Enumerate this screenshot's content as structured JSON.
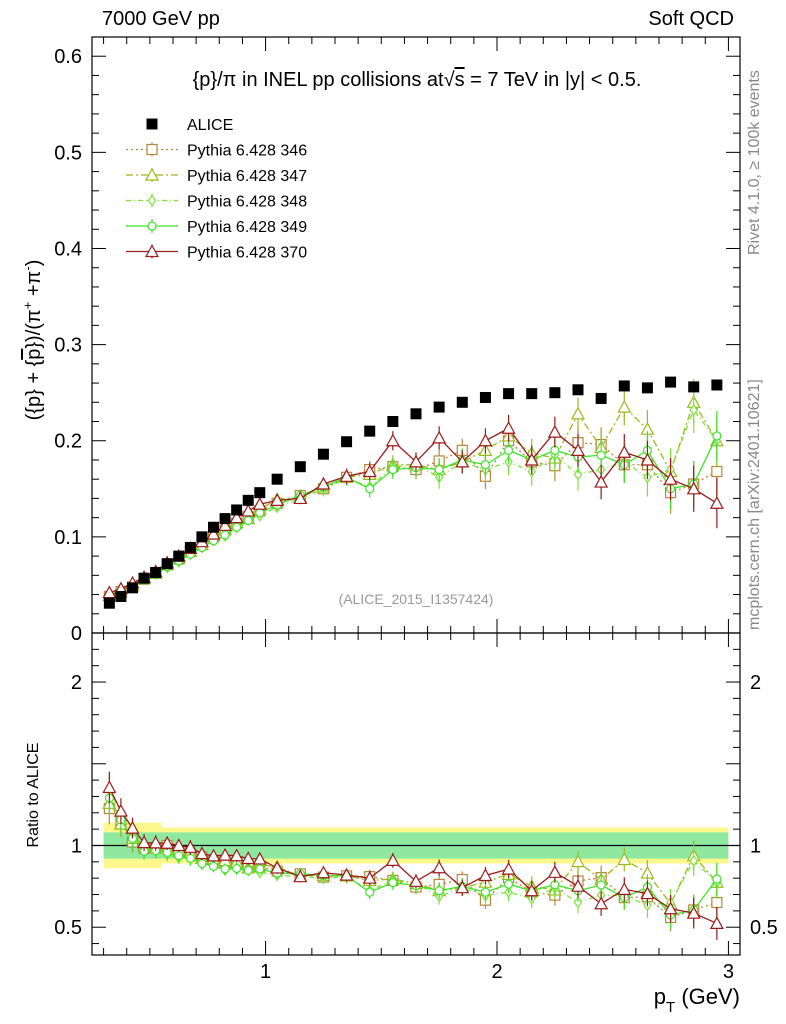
{
  "header": {
    "left": "7000 GeV pp",
    "right": "Soft QCD"
  },
  "side_labels": {
    "rivet": "Rivet 4.1.0, ≥ 100k events",
    "mcplots": "mcplots.cern.ch [arXiv:2401.10621]"
  },
  "chart_data": {
    "type": "scatter",
    "title_parts": [
      "{p}/π in INEL pp collisions at",
      "s",
      " =  7 TeV in |y| < 0.5."
    ],
    "ylabel_parts": [
      "({p} + {",
      "p",
      "})/(π",
      "+",
      " +π",
      "-",
      ")"
    ],
    "xlabel_parts": [
      "p",
      "T",
      " (GeV)"
    ],
    "ratio_ylabel": "Ratio to ALICE",
    "watermark": "(ALICE_2015_I1357424)",
    "main_ylim": [
      0,
      0.62
    ],
    "main_yticks": [
      0,
      0.1,
      0.2,
      0.3,
      0.4,
      0.5,
      0.6
    ],
    "main_ytick_labels": [
      "0",
      "0.1",
      "0.2",
      "0.3",
      "0.4",
      "0.5",
      "0.6"
    ],
    "xlim": [
      0.25,
      3.05
    ],
    "xticks": [
      1,
      2,
      3
    ],
    "xtick_labels": [
      "1",
      "2",
      "3"
    ],
    "ratio_ylim": [
      0.33,
      2.3
    ],
    "ratio_yticks": [
      0.5,
      1,
      2
    ],
    "ratio_ytick_labels": [
      "0.5",
      "1",
      "2"
    ],
    "x": [
      0.325,
      0.375,
      0.425,
      0.475,
      0.525,
      0.575,
      0.625,
      0.675,
      0.725,
      0.775,
      0.825,
      0.875,
      0.925,
      0.975,
      1.05,
      1.15,
      1.25,
      1.35,
      1.45,
      1.55,
      1.65,
      1.75,
      1.85,
      1.95,
      2.05,
      2.15,
      2.25,
      2.35,
      2.45,
      2.55,
      2.65,
      2.75,
      2.85,
      2.95
    ],
    "reference": {
      "name": "ALICE",
      "color": "#000000",
      "values": [
        0.031,
        0.038,
        0.047,
        0.057,
        0.063,
        0.072,
        0.08,
        0.089,
        0.1,
        0.11,
        0.119,
        0.128,
        0.138,
        0.146,
        0.16,
        0.173,
        0.186,
        0.199,
        0.21,
        0.22,
        0.228,
        0.235,
        0.24,
        0.245,
        0.249,
        0.249,
        0.25,
        0.253,
        0.244,
        0.257,
        0.255,
        0.261,
        0.256,
        0.258
      ],
      "band_inner": [
        0.08,
        0.08,
        0.08,
        0.08,
        0.08,
        0.08,
        0.08,
        0.08,
        0.08,
        0.08,
        0.08,
        0.08,
        0.08,
        0.08,
        0.08,
        0.08,
        0.08,
        0.08,
        0.08,
        0.08,
        0.08,
        0.08,
        0.08,
        0.08,
        0.08,
        0.08,
        0.08,
        0.08,
        0.08,
        0.08,
        0.08,
        0.08,
        0.08,
        0.08
      ],
      "band_outer": [
        0.14,
        0.14,
        0.14,
        0.14,
        0.14,
        0.11,
        0.11,
        0.11,
        0.11,
        0.11,
        0.11,
        0.11,
        0.11,
        0.11,
        0.11,
        0.11,
        0.11,
        0.11,
        0.11,
        0.11,
        0.11,
        0.11,
        0.11,
        0.11,
        0.11,
        0.11,
        0.11,
        0.11,
        0.11,
        0.11,
        0.11,
        0.11,
        0.11,
        0.11
      ]
    },
    "series": [
      {
        "name": "Pythia 6.428 346",
        "color": "#b8863b",
        "marker": "square",
        "dash": "2,3",
        "values": [
          0.038,
          0.043,
          0.048,
          0.056,
          0.062,
          0.072,
          0.077,
          0.085,
          0.093,
          0.1,
          0.107,
          0.114,
          0.121,
          0.127,
          0.135,
          0.143,
          0.15,
          0.162,
          0.17,
          0.173,
          0.17,
          0.179,
          0.19,
          0.163,
          0.2,
          0.178,
          0.174,
          0.198,
          0.196,
          0.175,
          0.175,
          0.146,
          0.155,
          0.168
        ],
        "err": [
          0.003,
          0.003,
          0.003,
          0.003,
          0.003,
          0.003,
          0.003,
          0.004,
          0.004,
          0.004,
          0.004,
          0.005,
          0.005,
          0.005,
          0.006,
          0.006,
          0.007,
          0.008,
          0.009,
          0.01,
          0.01,
          0.012,
          0.012,
          0.013,
          0.014,
          0.015,
          0.016,
          0.017,
          0.018,
          0.019,
          0.02,
          0.022,
          0.024,
          0.026
        ]
      },
      {
        "name": "Pythia 6.428 347",
        "color": "#9aba1a",
        "marker": "triangle",
        "dash": "7,3,2,3",
        "values": [
          0.039,
          0.043,
          0.049,
          0.057,
          0.062,
          0.071,
          0.078,
          0.085,
          0.092,
          0.101,
          0.108,
          0.115,
          0.119,
          0.129,
          0.139,
          0.141,
          0.152,
          0.162,
          0.165,
          0.175,
          0.175,
          0.17,
          0.178,
          0.19,
          0.205,
          0.187,
          0.182,
          0.228,
          0.193,
          0.235,
          0.212,
          0.168,
          0.24,
          0.2
        ],
        "err": [
          0.003,
          0.003,
          0.003,
          0.003,
          0.003,
          0.003,
          0.003,
          0.004,
          0.004,
          0.004,
          0.004,
          0.005,
          0.005,
          0.005,
          0.006,
          0.006,
          0.007,
          0.008,
          0.009,
          0.01,
          0.01,
          0.012,
          0.012,
          0.013,
          0.014,
          0.015,
          0.016,
          0.017,
          0.018,
          0.019,
          0.02,
          0.022,
          0.024,
          0.026
        ]
      },
      {
        "name": "Pythia 6.428 348",
        "color": "#7ee23a",
        "marker": "diamond",
        "dash": "5,3,1,3",
        "values": [
          0.042,
          0.045,
          0.051,
          0.056,
          0.061,
          0.068,
          0.074,
          0.082,
          0.089,
          0.096,
          0.101,
          0.11,
          0.118,
          0.122,
          0.131,
          0.14,
          0.149,
          0.161,
          0.152,
          0.173,
          0.175,
          0.162,
          0.178,
          0.17,
          0.178,
          0.168,
          0.185,
          0.165,
          0.17,
          0.178,
          0.162,
          0.17,
          0.232,
          0.2
        ],
        "err": [
          0.003,
          0.003,
          0.003,
          0.003,
          0.003,
          0.003,
          0.003,
          0.004,
          0.004,
          0.004,
          0.004,
          0.005,
          0.005,
          0.005,
          0.006,
          0.006,
          0.007,
          0.008,
          0.009,
          0.01,
          0.01,
          0.012,
          0.012,
          0.013,
          0.014,
          0.015,
          0.016,
          0.017,
          0.018,
          0.019,
          0.02,
          0.022,
          0.024,
          0.026
        ]
      },
      {
        "name": "Pythia 6.428 349",
        "color": "#3ee52a",
        "marker": "circle",
        "dash": "",
        "values": [
          0.04,
          0.044,
          0.049,
          0.055,
          0.061,
          0.069,
          0.075,
          0.082,
          0.089,
          0.096,
          0.102,
          0.11,
          0.117,
          0.125,
          0.133,
          0.143,
          0.152,
          0.162,
          0.15,
          0.17,
          0.172,
          0.17,
          0.18,
          0.175,
          0.19,
          0.18,
          0.19,
          0.183,
          0.185,
          0.175,
          0.19,
          0.15,
          0.155,
          0.205
        ],
        "err": [
          0.003,
          0.003,
          0.003,
          0.003,
          0.003,
          0.003,
          0.003,
          0.004,
          0.004,
          0.004,
          0.004,
          0.005,
          0.005,
          0.005,
          0.006,
          0.006,
          0.007,
          0.008,
          0.009,
          0.01,
          0.01,
          0.012,
          0.012,
          0.013,
          0.014,
          0.015,
          0.016,
          0.017,
          0.018,
          0.019,
          0.02,
          0.022,
          0.024,
          0.026
        ]
      },
      {
        "name": "Pythia 6.428 370",
        "color": "#9a1a1a",
        "marker": "triangle",
        "dash": "",
        "values": [
          0.042,
          0.046,
          0.052,
          0.058,
          0.064,
          0.073,
          0.08,
          0.088,
          0.095,
          0.103,
          0.112,
          0.12,
          0.127,
          0.134,
          0.138,
          0.14,
          0.155,
          0.163,
          0.168,
          0.2,
          0.178,
          0.203,
          0.178,
          0.2,
          0.213,
          0.18,
          0.209,
          0.19,
          0.157,
          0.188,
          0.18,
          0.16,
          0.15,
          0.135
        ],
        "err": [
          0.003,
          0.003,
          0.003,
          0.003,
          0.003,
          0.003,
          0.003,
          0.004,
          0.004,
          0.004,
          0.004,
          0.005,
          0.005,
          0.005,
          0.006,
          0.006,
          0.007,
          0.008,
          0.009,
          0.01,
          0.01,
          0.012,
          0.012,
          0.013,
          0.014,
          0.015,
          0.016,
          0.017,
          0.018,
          0.019,
          0.02,
          0.022,
          0.024,
          0.026
        ]
      }
    ]
  }
}
